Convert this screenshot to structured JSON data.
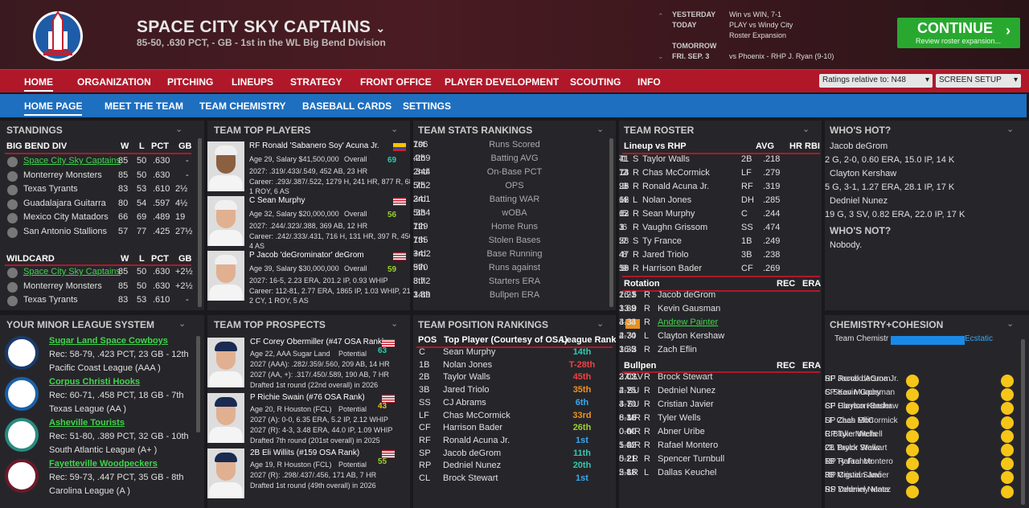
{
  "header": {
    "team_name": "SPACE CITY SKY CAPTAINS",
    "record": "85-50, .630 PCT, - GB - 1st in the WL Big Bend Division",
    "schedule": [
      {
        "label": "YESTERDAY",
        "value": "Win vs WIN, 7-1"
      },
      {
        "label": "TODAY",
        "value": "PLAY vs Windy City"
      },
      {
        "label": "",
        "value": "Roster Expansion"
      },
      {
        "label": "TOMORROW",
        "value": ""
      },
      {
        "label": "FRI. SEP. 3",
        "value": "vs Phoenix - RHP J. Ryan (9-10)"
      }
    ],
    "continue_label": "CONTINUE",
    "continue_sub": "Review roster expansion..."
  },
  "nav": {
    "items": [
      "HOME",
      "ORGANIZATION",
      "PITCHING",
      "LINEUPS",
      "STRATEGY",
      "FRONT OFFICE",
      "PLAYER DEVELOPMENT",
      "SCOUTING",
      "INFO"
    ],
    "ratings_select": "Ratings relative to:  N48",
    "screen_setup": "SCREEN SETUP"
  },
  "subnav": {
    "items": [
      "HOME PAGE",
      "MEET THE TEAM",
      "TEAM CHEMISTRY",
      "BASEBALL CARDS",
      "SETTINGS"
    ]
  },
  "standings": {
    "title": "STANDINGS",
    "division": "BIG BEND DIV",
    "cols": [
      "W",
      "L",
      "PCT",
      "GB"
    ],
    "rows": [
      [
        "Space City Sky Captains",
        "85",
        "50",
        ".630",
        "-"
      ],
      [
        "Monterrey Monsters",
        "85",
        "50",
        ".630",
        "-"
      ],
      [
        "Texas Tyrants",
        "83",
        "53",
        ".610",
        "2½"
      ],
      [
        "Guadalajara Guitarra",
        "80",
        "54",
        ".597",
        "4½"
      ],
      [
        "Mexico City Matadors",
        "66",
        "69",
        ".489",
        "19"
      ],
      [
        "San Antonio Stallions",
        "57",
        "77",
        ".425",
        "27½"
      ]
    ],
    "wildcard_title": "WILDCARD",
    "wildcard": [
      [
        "Space City Sky Captains",
        "85",
        "50",
        ".630",
        "+2½"
      ],
      [
        "Monterrey Monsters",
        "85",
        "50",
        ".630",
        "+2½"
      ],
      [
        "Texas Tyrants",
        "83",
        "53",
        ".610",
        "-"
      ]
    ]
  },
  "top_players": {
    "title": "TEAM TOP PLAYERS",
    "players": [
      {
        "name": "RF Ronald 'Sabanero Soy' Acuna Jr.",
        "info": "Age 29, Salary $41,500,000",
        "overall_label": "Overall",
        "overall": "69",
        "l1": "2027: .319/.433/.549, 452 AB, 23 HR",
        "l2": "Career: .293/.387/.522, 1279 H, 241 HR, 877 R, 688",
        "l3": "1 ROY, 6 AS"
      },
      {
        "name": "C Sean Murphy",
        "info": "Age 32, Salary $20,000,000",
        "overall_label": "Overall",
        "overall": "56",
        "l1": "2027: .244/.323/.388, 369 AB, 12 HR",
        "l2": "Career: .242/.333/.431, 716 H, 131 HR, 397 R, 450 R",
        "l3": "4 AS"
      },
      {
        "name": "P Jacob 'deGrominator' deGrom",
        "info": "Age 39, Salary $30,000,000",
        "overall_label": "Overall",
        "overall": "59",
        "l1": "2027: 16-5, 2.23 ERA, 201.2 IP, 0.93 WHIP",
        "l2": "Career: 112-81, 2.77 ERA, 1865 IP, 1.03 WHIP, 2137",
        "l3": "2 CY, 1 ROY, 5 AS"
      }
    ]
  },
  "stats": {
    "title": "TEAM STATS RANKINGS",
    "rows": [
      [
        "706",
        "Runs Scored",
        "1st"
      ],
      [
        ".269",
        "Batting AVG",
        "4th"
      ],
      [
        ".344",
        "On-Base PCT",
        "2nd"
      ],
      [
        ".752",
        "OPS",
        "5th"
      ],
      [
        "24.1",
        "Batting WAR",
        "3rd"
      ],
      [
        ".334",
        "wOBA",
        "5th"
      ],
      [
        "129",
        "Home Runs",
        "7th"
      ],
      [
        "135",
        "Stolen Bases",
        "7th"
      ],
      [
        "+4.2",
        "Base Running",
        "3rd"
      ],
      [
        "570",
        "Runs against",
        "9th"
      ],
      [
        "3.72",
        "Starters ERA",
        "8th"
      ],
      [
        "3.89",
        "Bullpen ERA",
        "14th"
      ]
    ]
  },
  "roster": {
    "title": "TEAM ROSTER",
    "lineup_title": "Lineup vs RHP",
    "cols": [
      "AVG",
      "HR",
      "RBI"
    ],
    "lineup": [
      [
        "1",
        "S",
        "Taylor Walls",
        "2B",
        ".218",
        "7",
        "41"
      ],
      [
        "2",
        "R",
        "Chas McCormick",
        "LF",
        ".279",
        "13",
        "74"
      ],
      [
        "3",
        "R",
        "Ronald Acuna Jr.",
        "RF",
        ".319",
        "23",
        "96"
      ],
      [
        "4",
        "L",
        "Nolan Jones",
        "DH",
        ".285",
        "16",
        "62"
      ],
      [
        "5",
        "R",
        "Sean Murphy",
        "C",
        ".244",
        "12",
        "63"
      ],
      [
        "6",
        "R",
        "Vaughn Grissom",
        "SS",
        ".474",
        "1",
        "3"
      ],
      [
        "7",
        "S",
        "Ty France",
        "1B",
        ".249",
        "5",
        "28"
      ],
      [
        "8",
        "R",
        "Jared Triolo",
        "3B",
        ".238",
        "4",
        "47"
      ],
      [
        "9",
        "R",
        "Harrison Bader",
        "CF",
        ".269",
        "10",
        "58"
      ]
    ],
    "rotation_title": "Rotation",
    "rot_cols": [
      "REC",
      "ERA"
    ],
    "rotation": [
      [
        "1",
        "R",
        "Jacob deGrom",
        "16-5",
        "2.23"
      ],
      [
        "2",
        "R",
        "Kevin Gausman",
        "13-9",
        "3.89"
      ],
      [
        "3",
        "R",
        "Andrew Painter",
        "3-3",
        "4.34"
      ],
      [
        "4",
        "L",
        "Clayton Kershaw",
        "4-3",
        "2.70"
      ],
      [
        "5",
        "R",
        "Zach Eflin",
        "16-3",
        "3.32"
      ]
    ],
    "bullpen_title": "Bullpen",
    "bullpen": [
      [
        "CL",
        "R",
        "Brock Stewart",
        "37 SV",
        "2.02"
      ],
      [
        "SU",
        "R",
        "Dedniel Nunez",
        "4-2",
        "2.75"
      ],
      [
        "SU",
        "R",
        "Cristian Javier",
        "4-7",
        "3.70"
      ],
      [
        "MR",
        "R",
        "Tyler Wells",
        "8-10",
        "6.33"
      ],
      [
        "MR",
        "R",
        "Abner Uribe",
        "0-0",
        "0.00"
      ],
      [
        "MR",
        "R",
        "Rafael Montero",
        "1-2",
        "5.02"
      ],
      [
        "LR",
        "R",
        "Spencer Turnbull",
        "0-2",
        "5.21"
      ],
      [
        "LR",
        "L",
        "Dallas Keuchel",
        "2-1",
        "5.88"
      ]
    ]
  },
  "hot": {
    "title": "WHO'S HOT?",
    "players": [
      {
        "name": "Jacob deGrom",
        "line": "2 G, 2-0, 0.60 ERA, 15.0 IP, 14 K"
      },
      {
        "name": "Clayton Kershaw",
        "line": "5 G, 3-1, 1.27 ERA, 28.1 IP, 17 K"
      },
      {
        "name": "Dedniel Nunez",
        "line": "19 G, 3 SV, 0.82 ERA, 22.0 IP, 17 K"
      }
    ],
    "not_title": "WHO'S NOT?",
    "not_text": "Nobody."
  },
  "minors": {
    "title": "YOUR MINOR LEAGUE SYSTEM",
    "teams": [
      {
        "name": "Sugar Land Space Cowboys",
        "rec": "Rec: 58-79, .423 PCT, 23 GB - 12th",
        "league": "Pacific Coast League (AAA )"
      },
      {
        "name": "Corpus Christi Hooks",
        "rec": "Rec: 60-71, .458 PCT, 18 GB - 7th",
        "league": "Texas League (AA )"
      },
      {
        "name": "Asheville Tourists",
        "rec": "Rec: 51-80, .389 PCT, 32 GB - 10th",
        "league": "South Atlantic League (A+ )"
      },
      {
        "name": "Fayetteville Woodpeckers",
        "rec": "Rec: 59-73, .447 PCT, 35 GB - 8th",
        "league": "Carolina League (A )"
      }
    ]
  },
  "prospects": {
    "title": "TEAM TOP PROSPECTS",
    "players": [
      {
        "name": "CF Corey Obermiller (#47 OSA Rank)",
        "info": "Age 22, AAA Sugar Land",
        "pot_label": "Potential",
        "pot": "63",
        "l1": "2027 (AAA): .282/.359/.560, 209 AB, 14 HR",
        "l2": "2027 (AA, +): .317/.450/.589, 190 AB, 7 HR",
        "l3": "Drafted 1st round (22nd overall) in 2026"
      },
      {
        "name": "P Richie Swain (#76 OSA Rank)",
        "info": "Age 20, R Houston (FCL)",
        "pot_label": "Potential",
        "pot": "43",
        "l1": "2027 (A): 0-0, 6.35 ERA, 5.2 IP, 2.12 WHIP",
        "l2": "2027 (R): 4-3, 3.48 ERA, 44.0 IP, 1.09 WHIP",
        "l3": "Drafted 7th round (201st overall) in 2025"
      },
      {
        "name": "2B Eli Willits (#159 OSA Rank)",
        "info": "Age 19, R Houston (FCL)",
        "pot_label": "Potential",
        "pot": "55",
        "l1": "2027 (R): .298/.437/.456, 171 AB, 7 HR",
        "l2": "Drafted 1st round (49th overall) in 2026",
        "l3": ""
      }
    ]
  },
  "positions": {
    "title": "TEAM POSITION RANKINGS",
    "cols": [
      "POS",
      "Top Player (Courtesy of OSA)",
      "League Rank"
    ],
    "rows": [
      [
        "C",
        "Sean Murphy",
        "14th"
      ],
      [
        "1B",
        "Nolan Jones",
        "T-28th"
      ],
      [
        "2B",
        "Taylor Walls",
        "45th"
      ],
      [
        "3B",
        "Jared Triolo",
        "35th"
      ],
      [
        "SS",
        "CJ Abrams",
        "6th"
      ],
      [
        "LF",
        "Chas McCormick",
        "33rd"
      ],
      [
        "CF",
        "Harrison Bader",
        "26th"
      ],
      [
        "RF",
        "Ronald Acuna Jr.",
        "1st"
      ],
      [
        "SP",
        "Jacob deGrom",
        "11th"
      ],
      [
        "RP",
        "Dedniel Nunez",
        "20th"
      ],
      [
        "CL",
        "Brock Stewart",
        "1st"
      ]
    ]
  },
  "chem": {
    "title": "CHEMISTRY+COHESION",
    "label": "Team Chemistr",
    "status": "Ecstatic",
    "left": [
      "SP Jacob deGrom",
      "SP Kevin Gausman",
      "SP Clayton Kershaw",
      "SP Zach Eflin",
      "RP Tyler Wells",
      "CL Brock Stewart",
      "RP Rafael Montero",
      "RP Cristian Javier",
      "RP Dedniel Nunez"
    ],
    "right": [
      "RF Ronald Acuna Jr.",
      "C Sean Murphy",
      "CF Harrison Bader",
      "LF Chas McCormick",
      "C Blake Mitchell",
      "2B Taylor Walls",
      "1B Ty France",
      "3B Miguel Sanó",
      "SS Yohenny Mata"
    ]
  }
}
